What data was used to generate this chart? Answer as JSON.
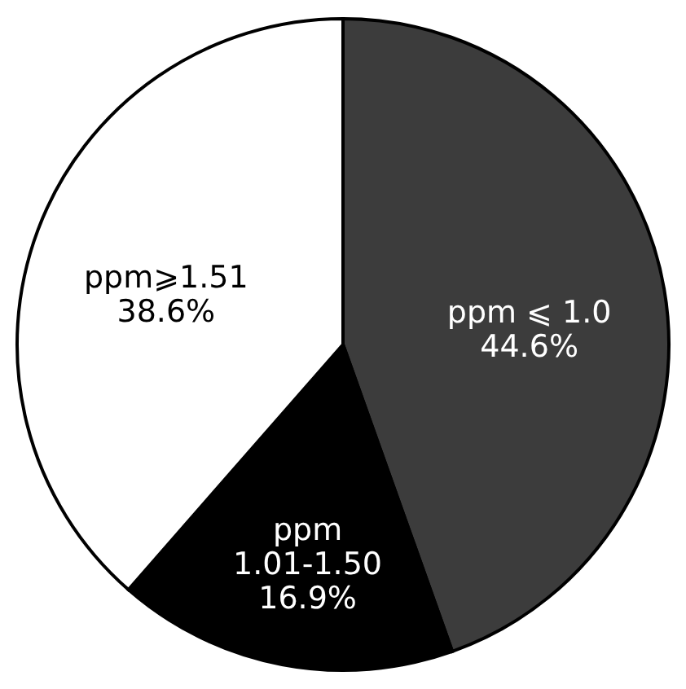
{
  "chart_data": {
    "type": "pie",
    "categories": [
      "ppm ⩽ 1.0",
      "ppm\n1.01-1.50",
      "ppm⩾1.51"
    ],
    "values": [
      44.6,
      16.9,
      38.6
    ],
    "colors": [
      "#3c3c3c",
      "#000000",
      "#ffffff"
    ],
    "value_labels": [
      "44.6%",
      "16.9%",
      "38.6%"
    ]
  }
}
